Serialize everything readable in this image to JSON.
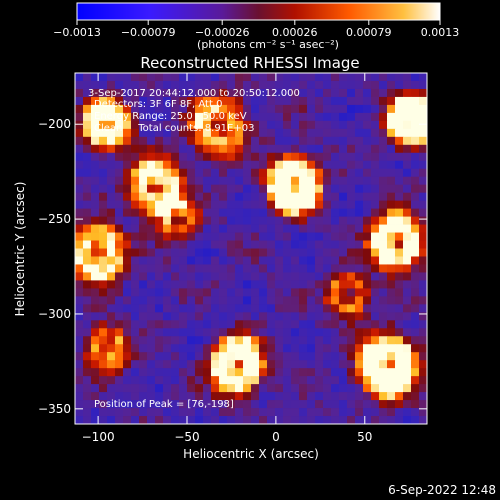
{
  "chart_data": {
    "type": "heatmap",
    "title": "Reconstructed RHESSI Image",
    "xlabel": "Heliocentric X (arcsec)",
    "ylabel": "Heliocentric Y (arcsec)",
    "xlim": [
      -113,
      85
    ],
    "ylim": [
      -358,
      -173
    ],
    "x_ticks": [
      -100,
      -50,
      0,
      50
    ],
    "x_tick_labels": [
      "−100",
      "−50",
      "0",
      "50"
    ],
    "y_ticks": [
      -200,
      -250,
      -300,
      -350
    ],
    "y_tick_labels": [
      "−200",
      "−250",
      "−300",
      "−350"
    ],
    "colorbar": {
      "min": -0.0013,
      "max": 0.0013,
      "ticks": [
        -0.0013,
        -0.00079,
        -0.00026,
        0.00026,
        0.00079,
        0.0013
      ],
      "tick_labels": [
        "−0.0013",
        "−0.00079",
        "−0.00026",
        "0.00026",
        "0.00079",
        "0.0013"
      ],
      "unit_label": "(photons cm⁻² s⁻¹ asec⁻²)"
    },
    "annotations": [
      "3-Sep-2017 20:44:12.000 to 20:50:12.000",
      "Detectors: 3F 6F 8F, Att 0",
      "Energy Range: 25.0 - 50.0 keV",
      "Clean     Total counts: 8.91E+03",
      "Position of Peak = [76,-198]"
    ],
    "sources": [
      {
        "x": 76,
        "y": -198,
        "r": 9,
        "a": 1.0
      },
      {
        "x": -95,
        "y": -200,
        "r": 9,
        "a": 0.8
      },
      {
        "x": -32,
        "y": -201,
        "r": 11,
        "a": 0.6
      },
      {
        "x": 10,
        "y": -232,
        "r": 10,
        "a": 0.95
      },
      {
        "x": -68,
        "y": -233,
        "r": 10,
        "a": 0.75
      },
      {
        "x": 68,
        "y": -262,
        "r": 10,
        "a": 0.9
      },
      {
        "x": -100,
        "y": -268,
        "r": 10,
        "a": 0.8
      },
      {
        "x": -55,
        "y": -250,
        "r": 8,
        "a": 0.45
      },
      {
        "x": -22,
        "y": -327,
        "r": 10,
        "a": 0.9
      },
      {
        "x": 63,
        "y": -327,
        "r": 11,
        "a": 0.95
      },
      {
        "x": -95,
        "y": -318,
        "r": 8,
        "a": 0.6
      },
      {
        "x": 40,
        "y": -290,
        "r": 8,
        "a": 0.55
      }
    ]
  },
  "timestamp": "6-Sep-2022 12:48"
}
